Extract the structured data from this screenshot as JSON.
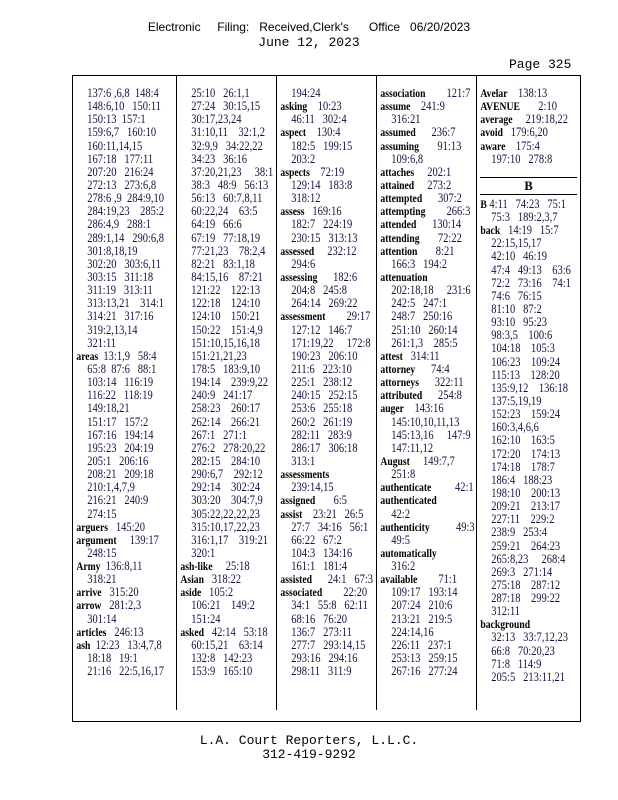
{
  "header": {
    "filing_stamp": "Electronic     Filing:   Received,Clerk's      Office   06/20/2023",
    "date": "June 12, 2023",
    "page": "Page 325"
  },
  "columns": [
    [
      {
        "r": "137:6 ,6,8  148:4"
      },
      {
        "r": "148:6,10   150:11"
      },
      {
        "r": "150:13  157:1"
      },
      {
        "r": "159:6,7   160:10"
      },
      {
        "r": "160:11,14,15"
      },
      {
        "r": "167:18   177:11"
      },
      {
        "r": "207:20   216:24"
      },
      {
        "r": "272:13   273:6,8"
      },
      {
        "r": "278:6 ,9  284:9,10"
      },
      {
        "r": "284:19,23    285:2"
      },
      {
        "r": "286:4,9   288:1"
      },
      {
        "r": "289:1,14   290:6,8"
      },
      {
        "r": "301:8,18,19"
      },
      {
        "r": "302:20   303:6,11"
      },
      {
        "r": "303:15   311:18"
      },
      {
        "r": "311:19   313:11"
      },
      {
        "r": "313:13,21    314:1"
      },
      {
        "r": "314:21   317:16"
      },
      {
        "r": "319:2,13,14"
      },
      {
        "r": "321:11"
      },
      {
        "w": "areas",
        "r": "  13:1,9   58:4"
      },
      {
        "r": "65:8  87:6   88:1"
      },
      {
        "r": "103:14   116:19"
      },
      {
        "r": "116:22   118:19"
      },
      {
        "r": "149:18,21"
      },
      {
        "r": "151:17   157:2"
      },
      {
        "r": "167:16   194:14"
      },
      {
        "r": "195:23   204:19"
      },
      {
        "r": "205:1   206:16"
      },
      {
        "r": "208:21   209:18"
      },
      {
        "r": "210:1,4,7,9"
      },
      {
        "r": "216:21   240:9"
      },
      {
        "r": "274:15"
      },
      {
        "w": "arguers",
        "r": "   145:20"
      },
      {
        "w": "argument",
        "r": "     139:17"
      },
      {
        "r": "248:15"
      },
      {
        "w": "Army",
        "r": "  136:8,11"
      },
      {
        "r": "318:21"
      },
      {
        "w": "arrive",
        "r": "   315:20"
      },
      {
        "w": "arrow",
        "r": "   281:2,3"
      },
      {
        "r": "301:14"
      },
      {
        "w": "articles",
        "r": "   246:13"
      },
      {
        "w": "ash",
        "r": "  12:23   13:4,7,8"
      },
      {
        "r": "18:18   19:1"
      },
      {
        "r": "21:16   22:5,16,17"
      }
    ],
    [
      {
        "r": "25:10   26:1,1"
      },
      {
        "r": "27:24   30:15,15"
      },
      {
        "r": "30:17,23,24"
      },
      {
        "r": "31:10,11    32:1,2"
      },
      {
        "r": "32:9,9   34:22,22"
      },
      {
        "r": "34:23   36:16"
      },
      {
        "r": "37:20,21,23     38:1"
      },
      {
        "r": "38:3   48:9   56:13"
      },
      {
        "r": "56:13   60:7,8,11"
      },
      {
        "r": "60:22,24    63:5"
      },
      {
        "r": "64:19   66:6"
      },
      {
        "r": "67:19   77:18,19"
      },
      {
        "r": "77:21,23    78:2,4"
      },
      {
        "r": "82:21   83:1,18"
      },
      {
        "r": "84:15,16    87:21"
      },
      {
        "r": "121:22    122:13"
      },
      {
        "r": "122:18    124:10"
      },
      {
        "r": "124:10    150:21"
      },
      {
        "r": "150:22    151:4,9"
      },
      {
        "r": "151:10,15,16,18"
      },
      {
        "r": "151:21,21,23"
      },
      {
        "r": "178:5   183:9,10"
      },
      {
        "r": "194:14    239:9,22"
      },
      {
        "r": "240:9   241:17"
      },
      {
        "r": "258:23    260:17"
      },
      {
        "r": "262:14    266:21"
      },
      {
        "r": "267:1   271:1"
      },
      {
        "r": "276:2   278:20,22"
      },
      {
        "r": "282:15    284:10"
      },
      {
        "r": "290:6,7    292:12"
      },
      {
        "r": "292:14    302:24"
      },
      {
        "r": "303:20    304:7,9"
      },
      {
        "r": "305:22,22,22,23"
      },
      {
        "r": "315:10,17,22,23"
      },
      {
        "r": "316:1,17    319:21"
      },
      {
        "r": "320:1"
      },
      {
        "w": "ash-like",
        "r": "     25:18"
      },
      {
        "w": "Asian",
        "r": "   318:22"
      },
      {
        "w": "aside",
        "r": "   105:2"
      },
      {
        "r": "106:21    149:2"
      },
      {
        "r": "151:24"
      },
      {
        "w": "asked",
        "r": "   42:14   53:18"
      },
      {
        "r": "60:15,21    63:14"
      },
      {
        "r": "132:8   142:23"
      },
      {
        "r": "153:9   165:10"
      }
    ],
    [
      {
        "r": "194:24"
      },
      {
        "w": "asking",
        "r": "    10:23"
      },
      {
        "r": "46:11   302:4"
      },
      {
        "w": "aspect",
        "r": "    130:4"
      },
      {
        "r": "182:5   199:15"
      },
      {
        "r": "203:2"
      },
      {
        "w": "aspects",
        "r": "    72:19"
      },
      {
        "r": "129:14   183:8"
      },
      {
        "r": "318:12"
      },
      {
        "w": "assess",
        "r": "   169:16"
      },
      {
        "r": "182:7   224:19"
      },
      {
        "r": "230:15   313:13"
      },
      {
        "w": "assessed",
        "r": "     232:12"
      },
      {
        "r": "294:6"
      },
      {
        "w": "assessing",
        "r": "      182:6"
      },
      {
        "r": "204:8   245:8"
      },
      {
        "r": "264:14   269:22"
      },
      {
        "w": "assessment",
        "r": "        29:17"
      },
      {
        "r": "127:12   146:7"
      },
      {
        "r": "171:19,22     172:8"
      },
      {
        "r": "190:23   206:10"
      },
      {
        "r": "211:6   223:10"
      },
      {
        "r": "225:1   238:12"
      },
      {
        "r": "240:15   252:15"
      },
      {
        "r": "253:6   255:18"
      },
      {
        "r": "260:2   261:19"
      },
      {
        "r": "282:11   283:9"
      },
      {
        "r": "286:17   306:18"
      },
      {
        "r": "313:1"
      },
      {
        "w": "assessments",
        "r": ""
      },
      {
        "r": "239:14,15"
      },
      {
        "w": "assigned",
        "r": "       6:5"
      },
      {
        "w": "assist",
        "r": "    23:21   26:5"
      },
      {
        "r": "27:7   34:16   56:1"
      },
      {
        "r": "66:22   67:2"
      },
      {
        "r": "104:3   134:16"
      },
      {
        "r": "161:1   181:4"
      },
      {
        "w": "assisted",
        "r": "      24:1   67:3"
      },
      {
        "w": "associated",
        "r": "        22:20"
      },
      {
        "r": "34:1   55:8   62:11"
      },
      {
        "r": "68:16   76:20"
      },
      {
        "r": "136:7   273:11"
      },
      {
        "r": "277:7   293:14,15"
      },
      {
        "r": "293:16   294:16"
      },
      {
        "r": "298:11   311:9"
      }
    ],
    [
      {
        "w": "association",
        "r": "        121:7"
      },
      {
        "w": "assume",
        "r": "    241:9"
      },
      {
        "r": "316:21"
      },
      {
        "w": "assumed",
        "r": "      236:7"
      },
      {
        "w": "assuming",
        "r": "       91:13"
      },
      {
        "r": "109:6,8"
      },
      {
        "w": "attaches",
        "r": "     202:1"
      },
      {
        "w": "attained",
        "r": "     273:2"
      },
      {
        "w": "attempted",
        "r": "      307:2"
      },
      {
        "w": "attempting",
        "r": "        266:3"
      },
      {
        "w": "attended",
        "r": "      130:14"
      },
      {
        "w": "attending",
        "r": "       72:22"
      },
      {
        "w": "attention",
        "r": "       8:21"
      },
      {
        "r": "166:3   194:2"
      },
      {
        "w": "attenuation",
        "r": ""
      },
      {
        "r": "202:18,18     231:6"
      },
      {
        "r": "242:5   247:1"
      },
      {
        "r": "248:7   250:16"
      },
      {
        "r": "251:10   260:14"
      },
      {
        "r": "261:1,3    285:5"
      },
      {
        "w": "attest",
        "r": "   314:11"
      },
      {
        "w": "attorney",
        "r": "      74:4"
      },
      {
        "w": "attorneys",
        "r": "      322:11"
      },
      {
        "w": "attributed",
        "r": "      254:8"
      },
      {
        "w": "auger",
        "r": "    143:16"
      },
      {
        "r": "145:10,10,11,13"
      },
      {
        "r": "145:13,16     147:9"
      },
      {
        "r": "147:11,12"
      },
      {
        "w": "August",
        "r": "     149:7,7"
      },
      {
        "r": "251:8"
      },
      {
        "w": "authenticate",
        "r": "         42:1"
      },
      {
        "w": "authenticated",
        "r": ""
      },
      {
        "r": "42:2"
      },
      {
        "w": "authenticity",
        "r": "          49:3"
      },
      {
        "r": "49:5"
      },
      {
        "w": "automatically",
        "r": ""
      },
      {
        "r": "316:2"
      },
      {
        "w": "available",
        "r": "        71:1"
      },
      {
        "r": "109:17   193:14"
      },
      {
        "r": "207:24   210:6"
      },
      {
        "r": "213:21   219:5"
      },
      {
        "r": "224:14,16"
      },
      {
        "r": "226:11   237:1"
      },
      {
        "r": "253:13   259:15"
      },
      {
        "r": "267:16   277:24"
      }
    ],
    {
      "before": [
        {
          "w": "Avelar",
          "r": "    138:13"
        },
        {
          "w": "AVENUE",
          "r": "       2:10"
        },
        {
          "w": "average",
          "r": "     219:18,22"
        },
        {
          "w": "avoid",
          "r": "   179:6,20"
        },
        {
          "w": "aware",
          "r": "    175:4"
        },
        {
          "r": "197:10   278:8"
        }
      ],
      "section_letter": "B",
      "after": [
        {
          "w": "B",
          "r": " 4:11   74:23   75:1"
        },
        {
          "r": "75:3   189:2,3,7"
        },
        {
          "w": "back",
          "r": "   14:19   15:7"
        },
        {
          "r": "22:15,15,17"
        },
        {
          "r": "42:10   46:19"
        },
        {
          "r": "47:4   49:13    63:6"
        },
        {
          "r": "72:2   73:16    74:1"
        },
        {
          "r": "74:6   76:15"
        },
        {
          "r": "81:10   87:2"
        },
        {
          "r": "93:10   95:23"
        },
        {
          "r": "98:3,5    100:6"
        },
        {
          "r": "104:18    105:3"
        },
        {
          "r": "106:23    109:24"
        },
        {
          "r": "115:13    128:20"
        },
        {
          "r": "135:9,12    136:18"
        },
        {
          "r": "137:5,19,19"
        },
        {
          "r": "152:23    159:24"
        },
        {
          "r": "160:3,4,6,6"
        },
        {
          "r": "162:10    163:5"
        },
        {
          "r": "172:20    174:13"
        },
        {
          "r": "174:18    178:7"
        },
        {
          "r": "186:4   188:23"
        },
        {
          "r": "198:10    200:13"
        },
        {
          "r": "209:21    213:17"
        },
        {
          "r": "227:11    229:2"
        },
        {
          "r": "238:9   253:4"
        },
        {
          "r": "259:21    264:23"
        },
        {
          "r": "265:8,23     268:4"
        },
        {
          "r": "269:3   271:14"
        },
        {
          "r": "275:18    287:12"
        },
        {
          "r": "287:18    299:22"
        },
        {
          "r": "312:11"
        },
        {
          "w": "background",
          "r": ""
        },
        {
          "r": "32:13   33:7,12,23"
        },
        {
          "r": "66:8   70:20,23"
        },
        {
          "r": "71:8   114:9"
        },
        {
          "r": "205:5   213:11,21"
        }
      ]
    }
  ],
  "footer": {
    "company": "L.A. Court Reporters, L.L.C.",
    "phone": "312-419-9292"
  }
}
